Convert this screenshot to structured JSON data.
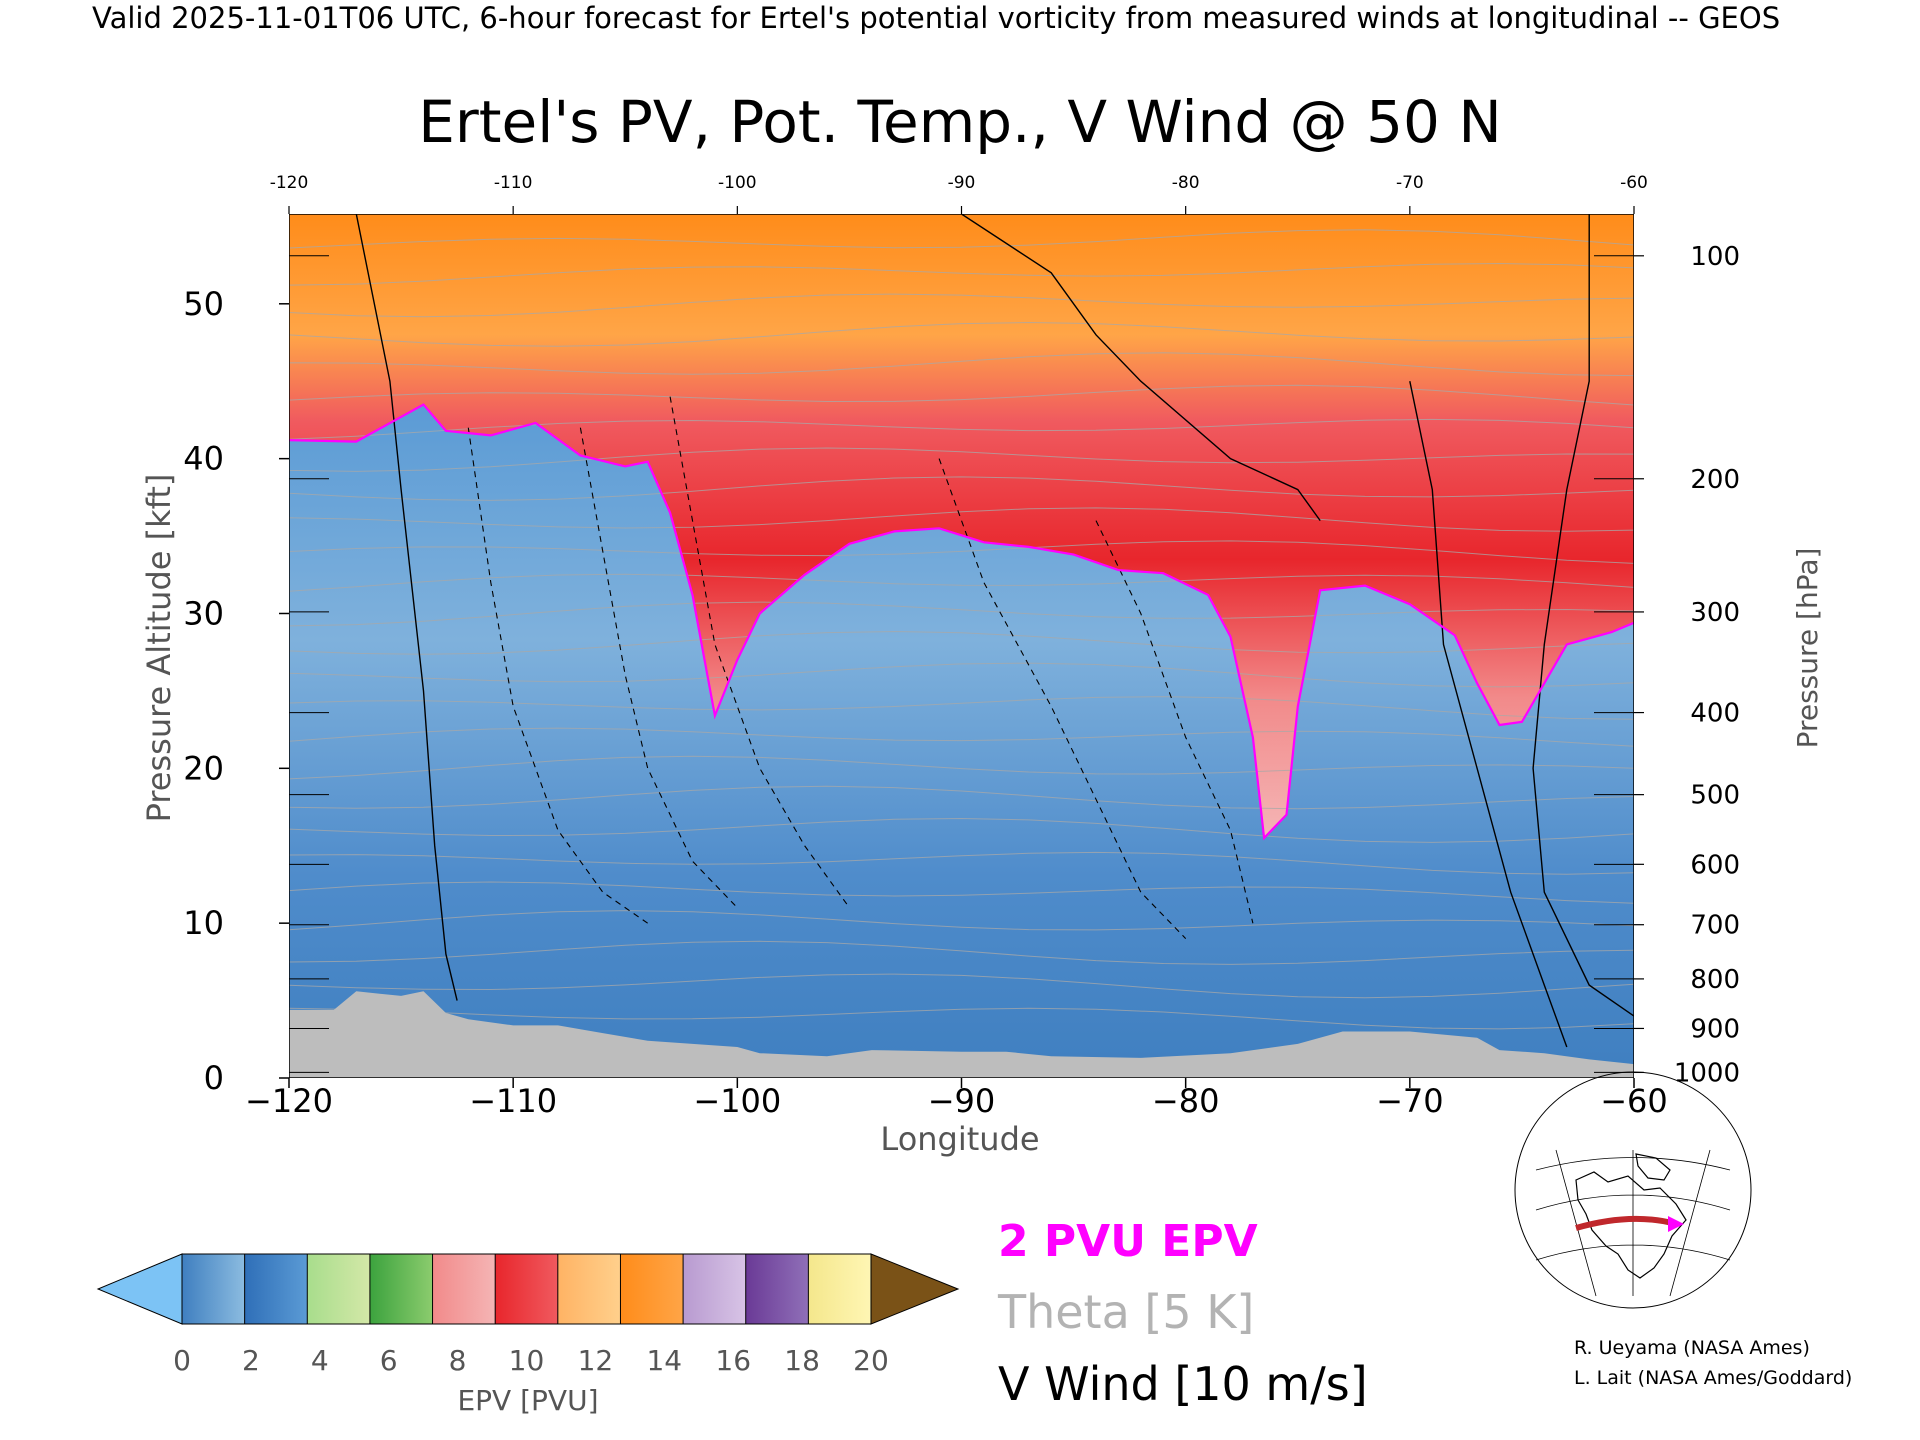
{
  "header": {
    "valid_line": "Valid 2025-11-01T06 UTC, 6-hour forecast for Ertel's potential vorticity from measured winds at longitudinal -- GEOS"
  },
  "chart_data": {
    "type": "heatmap",
    "title": "Ertel's PV, Pot. Temp., V Wind @ 50 N",
    "xlabel": "Longitude",
    "ylabel": "Pressure Altitude [kft]",
    "y2label": "Pressure [hPa]",
    "xlim": [
      -120,
      -60
    ],
    "ylim": [
      0,
      55.8
    ],
    "x_ticks": [
      -120,
      -110,
      -100,
      -90,
      -80,
      -70,
      -60
    ],
    "x_tick_labels": [
      "−120",
      "−110",
      "−100",
      "−90",
      "−80",
      "−70",
      "−60"
    ],
    "top_x_tick_labels": [
      "-120",
      "-110",
      "-100",
      "-90",
      "-80",
      "-70",
      "-60"
    ],
    "y_ticks": [
      0,
      10,
      20,
      30,
      40,
      50
    ],
    "y_tick_labels": [
      "0",
      "10",
      "20",
      "30",
      "40",
      "50"
    ],
    "pressure_ticks": [
      {
        "hPa": 100,
        "kft": 53.1
      },
      {
        "hPa": 200,
        "kft": 38.7
      },
      {
        "hPa": 300,
        "kft": 30.1
      },
      {
        "hPa": 400,
        "kft": 23.6
      },
      {
        "hPa": 500,
        "kft": 18.3
      },
      {
        "hPa": 600,
        "kft": 13.8
      },
      {
        "hPa": 700,
        "kft": 9.9
      },
      {
        "hPa": 800,
        "kft": 6.4
      },
      {
        "hPa": 900,
        "kft": 3.2
      },
      {
        "hPa": 1000,
        "kft": 0.36
      }
    ],
    "pressure_tick_labels": [
      "100",
      "200",
      "300",
      "400",
      "500",
      "600",
      "700",
      "800",
      "900",
      "1000"
    ],
    "tropopause_2pvu_kft": [
      [
        -120,
        41.2
      ],
      [
        -117,
        41.1
      ],
      [
        -114,
        43.5
      ],
      [
        -113,
        41.8
      ],
      [
        -111,
        41.5
      ],
      [
        -109,
        42.3
      ],
      [
        -107,
        40.2
      ],
      [
        -105,
        39.5
      ],
      [
        -104,
        39.8
      ],
      [
        -103,
        36.5
      ],
      [
        -102,
        31.2
      ],
      [
        -101,
        23.4
      ],
      [
        -100,
        27
      ],
      [
        -99,
        30
      ],
      [
        -97,
        32.5
      ],
      [
        -95,
        34.5
      ],
      [
        -93,
        35.3
      ],
      [
        -91,
        35.5
      ],
      [
        -89,
        34.6
      ],
      [
        -87,
        34.3
      ],
      [
        -85,
        33.8
      ],
      [
        -83,
        32.8
      ],
      [
        -81,
        32.6
      ],
      [
        -79,
        31.2
      ],
      [
        -78,
        28.5
      ],
      [
        -77,
        22
      ],
      [
        -76.5,
        15.5
      ],
      [
        -75.5,
        17
      ],
      [
        -75,
        24
      ],
      [
        -74,
        31.5
      ],
      [
        -72,
        31.8
      ],
      [
        -70,
        30.6
      ],
      [
        -68,
        28.6
      ],
      [
        -67,
        25.5
      ],
      [
        -66,
        22.8
      ],
      [
        -65,
        23
      ],
      [
        -63,
        28
      ],
      [
        -61,
        28.8
      ],
      [
        -60,
        29.4
      ]
    ],
    "surface_kft": [
      [
        -120,
        4.4
      ],
      [
        -118,
        4.4
      ],
      [
        -117,
        5.6
      ],
      [
        -115,
        5.3
      ],
      [
        -114,
        5.6
      ],
      [
        -113,
        4.2
      ],
      [
        -112,
        3.8
      ],
      [
        -110,
        3.4
      ],
      [
        -108,
        3.4
      ],
      [
        -106,
        2.9
      ],
      [
        -104,
        2.4
      ],
      [
        -100,
        2
      ],
      [
        -99,
        1.6
      ],
      [
        -96,
        1.4
      ],
      [
        -94,
        1.8
      ],
      [
        -90,
        1.7
      ],
      [
        -88,
        1.7
      ],
      [
        -86,
        1.4
      ],
      [
        -82,
        1.3
      ],
      [
        -78,
        1.6
      ],
      [
        -75,
        2.2
      ],
      [
        -73,
        3.0
      ],
      [
        -70,
        3.0
      ],
      [
        -67,
        2.6
      ],
      [
        -66,
        1.8
      ],
      [
        -64,
        1.6
      ],
      [
        -62,
        1.2
      ],
      [
        -60,
        0.9
      ]
    ],
    "colorbar": {
      "label": "EPV [PVU]",
      "tick_values": [
        0,
        2,
        4,
        6,
        8,
        10,
        12,
        14,
        16,
        18,
        20
      ],
      "tick_labels": [
        "0",
        "2",
        "4",
        "6",
        "8",
        "10",
        "12",
        "14",
        "16",
        "18",
        "20"
      ],
      "under_color": "#7cc3f5",
      "over_color": "#7a5217",
      "bands": [
        [
          "#3f7fc0",
          "#8cbce0"
        ],
        [
          "#2f6fb8",
          "#5b9bd5"
        ],
        [
          "#a8dd8c",
          "#d4e8a8"
        ],
        [
          "#3ca33e",
          "#8ccc6e"
        ],
        [
          "#f28a8a",
          "#f4b5b5"
        ],
        [
          "#e8262c",
          "#f05a5f"
        ],
        [
          "#ffb364",
          "#ffd08c"
        ],
        [
          "#ff8c1a",
          "#ffa547"
        ],
        [
          "#b89ad0",
          "#d8c4e6"
        ],
        [
          "#6a3a96",
          "#9070b8"
        ],
        [
          "#f4e78c",
          "#fff6b4"
        ]
      ]
    },
    "legend": {
      "entries": [
        {
          "label": "2 PVU EPV",
          "color": "#ff00ff"
        },
        {
          "label": "Theta [5 K]",
          "color": "#b3b3b3"
        },
        {
          "label": "V Wind [10 m/s]",
          "color": "#000000"
        }
      ]
    }
  },
  "credits": {
    "line1": "R. Ueyama (NASA Ames)",
    "line2": "L. Lait (NASA Ames/Goddard)"
  }
}
